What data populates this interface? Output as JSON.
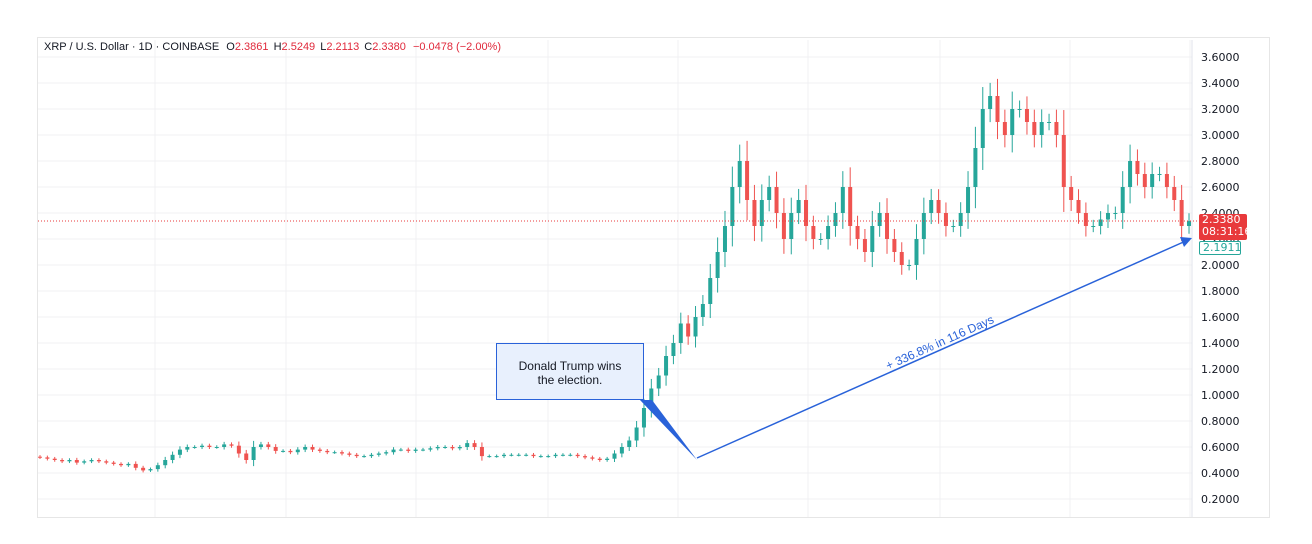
{
  "header": {
    "symbol": "XRP / U.S. Dollar · 1D · COINBASE",
    "open_label": "O",
    "open": "2.3861",
    "high_label": "H",
    "high": "2.5249",
    "low_label": "L",
    "low": "2.2113",
    "close_label": "C",
    "close": "2.3380",
    "change": "−0.0478 (−2.00%)"
  },
  "badges": {
    "last_price": "2.3380",
    "countdown": "08:31:16",
    "marker_price": "2.1911"
  },
  "annotations": {
    "callout_line1": "Donald Trump wins",
    "callout_line2": "the election.",
    "trend_label": "+ 336.8% in 116 Days"
  },
  "colors": {
    "up": "#26a69a",
    "down": "#ef5350",
    "annotation": "#2962d9",
    "price_line": "#e8393b"
  },
  "chart_data": {
    "type": "candlestick",
    "title": "XRP / U.S. Dollar · 1D · COINBASE",
    "ylim": [
      0.1,
      3.7
    ],
    "yticks": [
      "3.6000",
      "3.4000",
      "3.2000",
      "3.0000",
      "2.8000",
      "2.6000",
      "2.4000",
      "2.2000",
      "2.0000",
      "1.8000",
      "1.6000",
      "1.4000",
      "1.2000",
      "1.0000",
      "0.8000",
      "0.6000",
      "0.4000",
      "0.2000"
    ],
    "grid": true,
    "last_price": 2.338,
    "series_close": [
      0.52,
      0.51,
      0.5,
      0.49,
      0.5,
      0.48,
      0.49,
      0.5,
      0.49,
      0.48,
      0.47,
      0.46,
      0.47,
      0.44,
      0.42,
      0.43,
      0.46,
      0.5,
      0.54,
      0.58,
      0.6,
      0.6,
      0.61,
      0.6,
      0.6,
      0.62,
      0.61,
      0.55,
      0.5,
      0.6,
      0.62,
      0.6,
      0.57,
      0.57,
      0.56,
      0.58,
      0.6,
      0.58,
      0.57,
      0.56,
      0.56,
      0.55,
      0.54,
      0.53,
      0.53,
      0.54,
      0.55,
      0.56,
      0.58,
      0.58,
      0.57,
      0.58,
      0.58,
      0.59,
      0.6,
      0.6,
      0.59,
      0.6,
      0.63,
      0.6,
      0.53,
      0.53,
      0.53,
      0.54,
      0.54,
      0.54,
      0.54,
      0.53,
      0.53,
      0.53,
      0.54,
      0.54,
      0.54,
      0.53,
      0.52,
      0.51,
      0.5,
      0.51,
      0.55,
      0.6,
      0.65,
      0.75,
      0.9,
      1.05,
      1.15,
      1.3,
      1.4,
      1.55,
      1.45,
      1.6,
      1.7,
      1.9,
      2.1,
      2.3,
      2.6,
      2.8,
      2.5,
      2.3,
      2.5,
      2.6,
      2.4,
      2.2,
      2.4,
      2.5,
      2.3,
      2.2,
      2.2,
      2.3,
      2.4,
      2.6,
      2.3,
      2.2,
      2.1,
      2.3,
      2.4,
      2.2,
      2.1,
      2.0,
      2.0,
      2.2,
      2.4,
      2.5,
      2.4,
      2.3,
      2.3,
      2.4,
      2.6,
      2.9,
      3.2,
      3.3,
      3.1,
      3.0,
      3.2,
      3.2,
      3.1,
      3.0,
      3.1,
      3.1,
      3.0,
      2.6,
      2.5,
      2.4,
      2.3,
      2.3,
      2.35,
      2.4,
      2.4,
      2.6,
      2.8,
      2.7,
      2.6,
      2.7,
      2.7,
      2.6,
      2.5,
      2.3,
      2.338
    ]
  }
}
